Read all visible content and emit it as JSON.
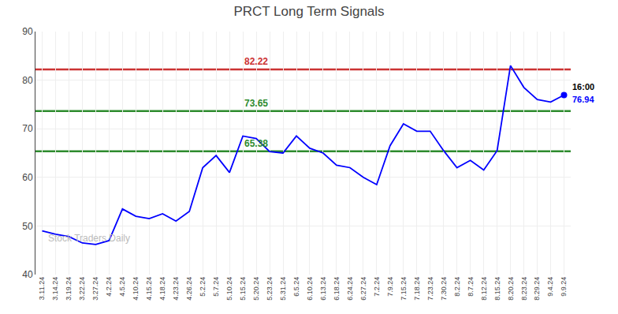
{
  "chart_data": {
    "type": "line",
    "title": "PRCT Long Term Signals",
    "categories": [
      "3.11.24",
      "3.14.24",
      "3.19.24",
      "3.22.24",
      "3.27.24",
      "4.2.24",
      "4.5.24",
      "4.10.24",
      "4.15.24",
      "4.18.24",
      "4.23.24",
      "4.26.24",
      "5.2.24",
      "5.7.24",
      "5.10.24",
      "5.15.24",
      "5.20.24",
      "5.23.24",
      "5.31.24",
      "6.5.24",
      "6.10.24",
      "6.13.24",
      "6.18.24",
      "6.24.24",
      "6.27.24",
      "7.2.24",
      "7.9.24",
      "7.15.24",
      "7.18.24",
      "7.23.24",
      "7.30.24",
      "8.2.24",
      "8.7.24",
      "8.12.24",
      "8.15.24",
      "8.20.24",
      "8.23.24",
      "8.29.24",
      "9.4.24",
      "9.9.24"
    ],
    "values": [
      49.0,
      48.3,
      47.8,
      46.5,
      46.2,
      47.0,
      53.5,
      52.0,
      51.5,
      52.5,
      51.0,
      53.0,
      62.0,
      64.5,
      61.0,
      68.5,
      68.0,
      65.3,
      65.0,
      68.5,
      66.0,
      65.0,
      62.5,
      62.0,
      60.0,
      58.5,
      66.5,
      71.0,
      69.5,
      69.5,
      65.5,
      62.0,
      63.5,
      61.5,
      65.5,
      83.0,
      78.5,
      76.0,
      75.5,
      76.94
    ],
    "color": "blue",
    "hlines": [
      {
        "value": 82.22,
        "label": "82.22",
        "color": "#cc3333"
      },
      {
        "value": 73.65,
        "label": "73.65",
        "color": "#2e8b2e"
      },
      {
        "value": 65.38,
        "label": "65.38",
        "color": "#2e8b2e"
      }
    ],
    "annotations": [
      {
        "text": "16:00",
        "color": "black"
      },
      {
        "text": "76.94",
        "color": "blue"
      }
    ],
    "watermark": "Stock Traders Daily",
    "ylim": [
      40,
      90
    ],
    "yticks": [
      40,
      50,
      60,
      70,
      80,
      90
    ],
    "grid": true
  }
}
